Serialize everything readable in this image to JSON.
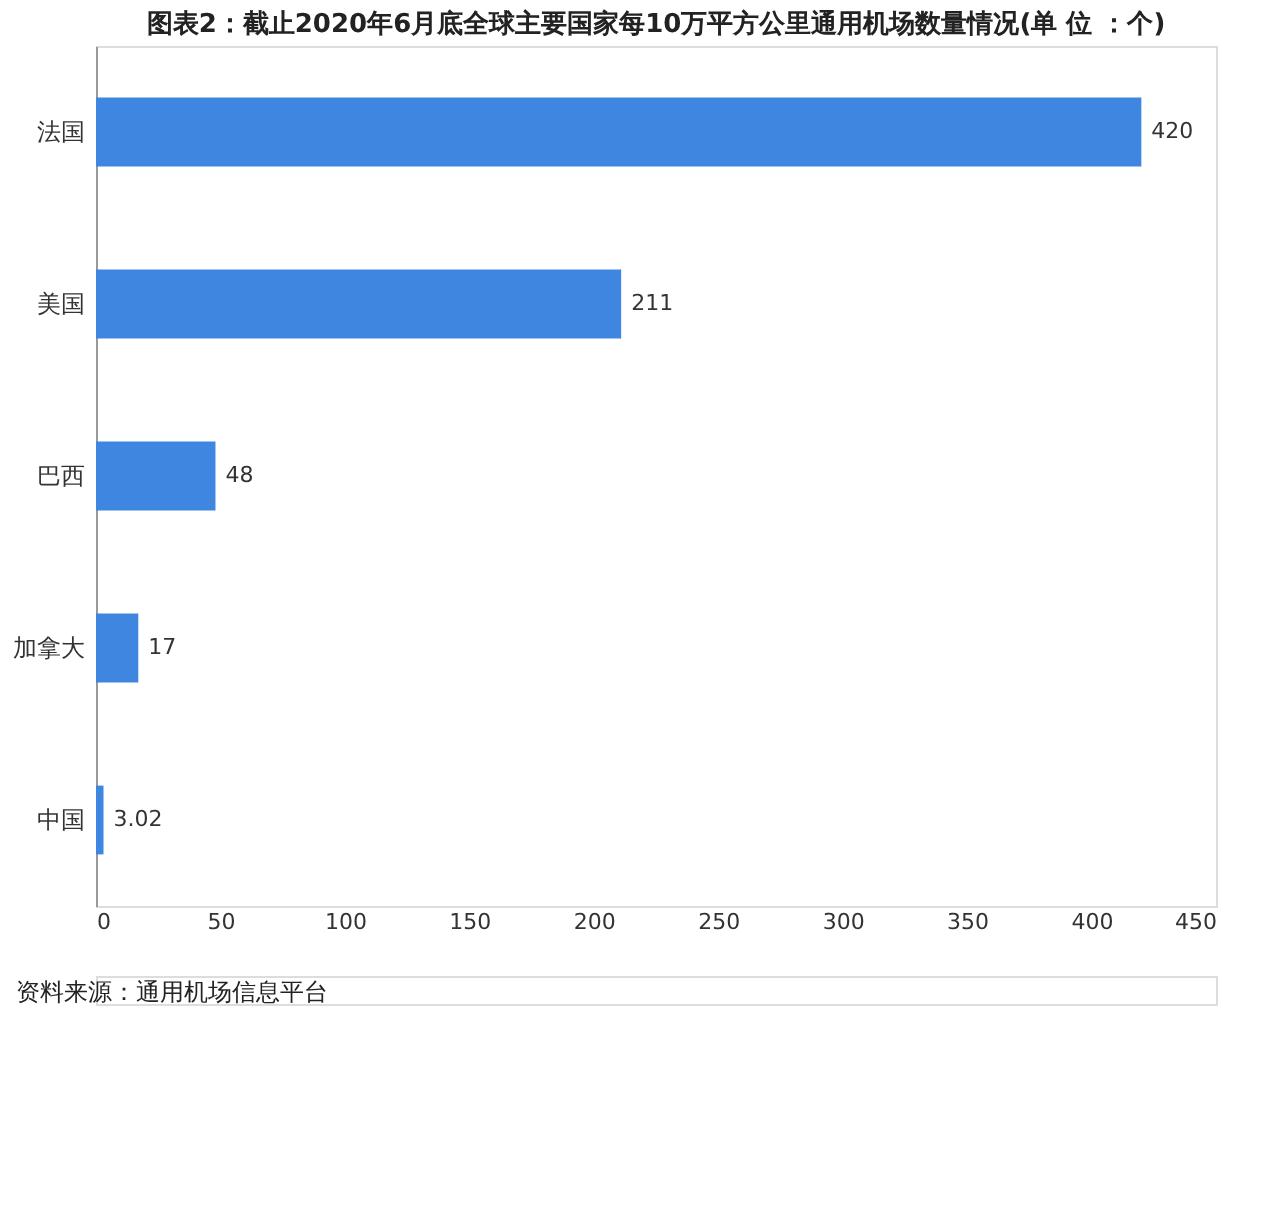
{
  "chart_data": {
    "type": "bar",
    "orientation": "horizontal",
    "title": "图表2：截止2020年6月底全球主要国家每10万平方公里通用机场数量情况(单 位 ：个)",
    "categories": [
      "法国",
      "美国",
      "巴西",
      "加拿大",
      "中国"
    ],
    "values": [
      420,
      211,
      48,
      17,
      3.02
    ],
    "color": "#3f86e0",
    "xlim": [
      0,
      450
    ],
    "xticks": [
      0,
      50,
      100,
      150,
      200,
      250,
      300,
      350,
      400,
      450
    ],
    "grid": false,
    "data_labels": true,
    "annotations": [
      "资料来源：通用机场信息平台"
    ]
  }
}
